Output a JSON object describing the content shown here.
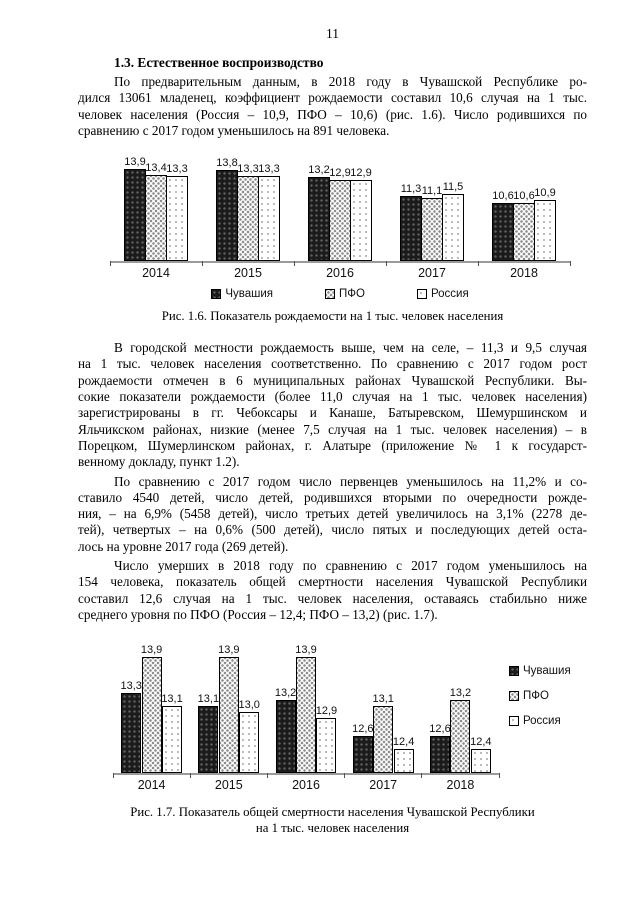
{
  "page": {
    "number": "11"
  },
  "section": {
    "heading": "1.3. Естественное воспроизводство"
  },
  "paragraphs": {
    "p1": [
      "По предварительным данным, в 2018 году в Чувашской Республике ро-",
      "дился 13061 младенец, коэффициент рождаемости составил 10,6 случая на 1 тыс.",
      "человек населения (Россия – 10,9, ПФО – 10,6) (рис. 1.6). Число родившихся по",
      "сравнению с 2017 годом уменьшилось на 891 человека."
    ],
    "p2": [
      "В городской местности рождаемость выше, чем на селе, – 11,3 и 9,5 случая",
      "на 1 тыс. человек населения соответственно. По сравнению с 2017 годом рост",
      "рождаемости отмечен в 6 муниципальных районах Чувашской Республики. Вы-",
      "сокие показатели рождаемости (более 11,0 случая на 1 тыс. человек населения)",
      "зарегистрированы в гг. Чебоксары и Канаше, Батыревском, Шемуршинском и",
      "Яльчикском районах, низкие (менее 7,5 случая на 1 тыс. человек населения) – в",
      "Порецком, Шумерлинском районах, г. Алатыре (приложение № 1 к государст-",
      "венному докладу, пункт 1.2)."
    ],
    "p3": [
      "По сравнению с 2017 годом число первенцев уменьшилось на 11,2% и со-",
      "ставило 4540 детей, число детей, родившихся вторыми по очередности рожде-",
      "ния, – на 6,9% (5458 детей), число третьих детей увеличилось на 3,1% (2278 де-",
      "тей), четвертых – на 0,6% (500 детей), число пятых и последующих детей оста-",
      "лось на уровне 2017 года (269 детей)."
    ],
    "p4": [
      "Число умерших в 2018 году по сравнению с 2017 годом уменьшилось на",
      "154 человека, показатель общей смертности населения Чувашской Республики",
      "составил 12,6 случая на 1 тыс. человек населения, оставаясь стабильно ниже",
      "среднего уровня по ПФО (Россия – 12,4; ПФО – 13,2) (рис. 1.7)."
    ]
  },
  "figures": {
    "fig16_caption": "Рис. 1.6. Показатель рождаемости на 1 тыс. человек населения",
    "fig17_caption_line1": "Рис. 1.7. Показатель общей смертности населения Чувашской Республики",
    "fig17_caption_line2": "на 1 тыс. человек населения"
  },
  "chart_data": [
    {
      "id": "chart1",
      "type": "bar",
      "title": "Рис. 1.6. Показатель рождаемости на 1 тыс. человек населения",
      "categories": [
        "2014",
        "2015",
        "2016",
        "2017",
        "2018"
      ],
      "series": [
        {
          "name": "Чувашия",
          "values": [
            13.9,
            13.8,
            13.2,
            11.3,
            10.6
          ]
        },
        {
          "name": "ПФО",
          "values": [
            13.4,
            13.3,
            12.9,
            11.1,
            10.6
          ]
        },
        {
          "name": "Россия",
          "values": [
            13.3,
            13.3,
            12.9,
            11.5,
            10.9
          ]
        }
      ],
      "ylim": [
        5,
        14.5
      ],
      "value_labels": true,
      "decimal_separator": ",",
      "grid": false,
      "legend_position": "bottom",
      "xlabel": "",
      "ylabel": ""
    },
    {
      "id": "chart2",
      "type": "bar",
      "title": "Рис. 1.7. Показатель общей смертности населения Чувашской Республики на 1 тыс. человек населения",
      "categories": [
        "2014",
        "2015",
        "2016",
        "2017",
        "2018"
      ],
      "series": [
        {
          "name": "Чувашия",
          "values": [
            13.3,
            13.1,
            13.2,
            12.6,
            12.6
          ]
        },
        {
          "name": "ПФО",
          "values": [
            13.9,
            13.9,
            13.9,
            13.1,
            13.2
          ]
        },
        {
          "name": "Россия",
          "values": [
            13.1,
            13.0,
            12.9,
            12.4,
            12.4
          ]
        }
      ],
      "ylim": [
        12,
        14.2
      ],
      "value_labels": true,
      "decimal_separator": ",",
      "grid": false,
      "legend_position": "right",
      "xlabel": "",
      "ylabel": ""
    }
  ],
  "colors": {
    "background": "#ffffff",
    "text": "#000000",
    "bar_dark": "#1b1b1b",
    "bar_border": "#000000",
    "axis_line": "#9a9a9a"
  }
}
